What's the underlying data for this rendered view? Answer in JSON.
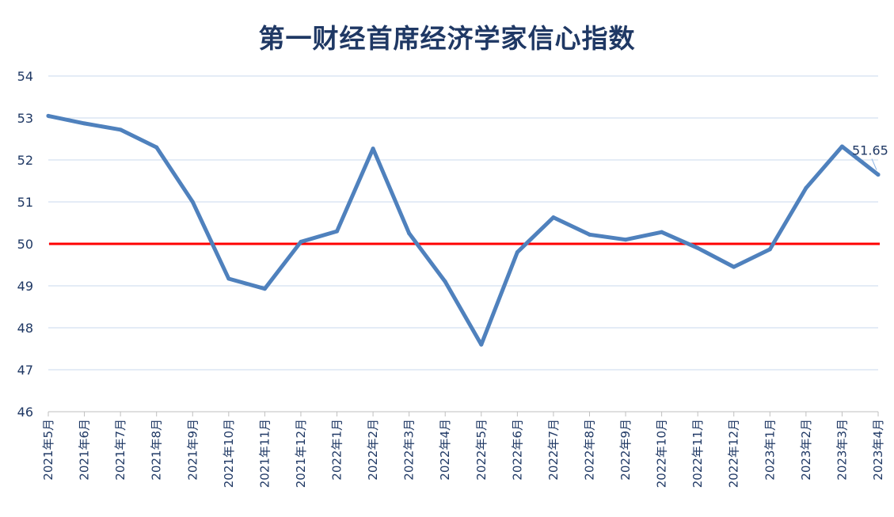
{
  "chart_data": {
    "type": "line",
    "title": "第一财经首席经济学家信心指数",
    "xlabel": "",
    "ylabel": "",
    "ylim": [
      46,
      54
    ],
    "yticks": [
      46,
      47,
      48,
      49,
      50,
      51,
      52,
      53,
      54
    ],
    "grid": true,
    "legend": "none",
    "categories": [
      "2021年5月",
      "2021年6月",
      "2021年7月",
      "2021年8月",
      "2021年9月",
      "2021年10月",
      "2021年11月",
      "2021年12月",
      "2022年1月",
      "2022年2月",
      "2022年3月",
      "2022年4月",
      "2022年5月",
      "2022年6月",
      "2022年7月",
      "2022年8月",
      "2022年9月",
      "2022年10月",
      "2022年11月",
      "2022年12月",
      "2023年1月",
      "2023年2月",
      "2023年3月",
      "2023年4月"
    ],
    "series": [
      {
        "values": [
          53.05,
          52.87,
          52.72,
          52.3,
          51.0,
          49.17,
          48.93,
          50.05,
          50.3,
          52.27,
          50.25,
          49.1,
          47.6,
          49.8,
          50.63,
          50.22,
          50.1,
          50.28,
          49.9,
          49.45,
          49.87,
          51.33,
          52.32,
          51.65
        ],
        "color": "#4f81bd"
      }
    ],
    "reference_line": {
      "value": 50,
      "color": "#ff0000"
    },
    "data_labels": [
      {
        "index": 23,
        "text": "51.65"
      }
    ]
  }
}
